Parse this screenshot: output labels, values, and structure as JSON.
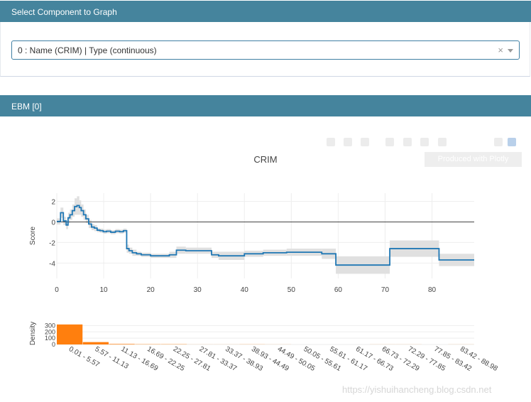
{
  "component_panel": {
    "title": "Select Component to Graph"
  },
  "component_select": {
    "value": "0 : Name (CRIM) | Type (continuous)",
    "clear_symbol": "×"
  },
  "ebm_panel": {
    "title": "EBM [0]"
  },
  "modebar": {
    "produced_label": "Produced with Plotly"
  },
  "colors": {
    "header_bg": "#45849d",
    "score_line": "#1f77b4",
    "density_bar": "#ff7f0e",
    "ci_band": "#e0e0e0"
  },
  "chart_data": [
    {
      "type": "line",
      "title": "CRIM",
      "xlabel": "",
      "ylabel": "Score",
      "x_ticks": [
        0,
        10,
        20,
        30,
        40,
        50,
        60,
        70,
        80
      ],
      "y_ticks": [
        2,
        0,
        -2,
        -4
      ],
      "xlim": [
        0,
        89
      ],
      "ylim": [
        -5.5,
        2.8
      ],
      "grid": true,
      "zero_line": true,
      "step_x": [
        0,
        0.8,
        1.4,
        2.0,
        2.4,
        2.8,
        3.3,
        3.8,
        4.3,
        4.8,
        5.2,
        5.7,
        6.2,
        6.8,
        7.4,
        8.0,
        8.6,
        9.2,
        9.9,
        10.6,
        11.5,
        12.5,
        13.4,
        14.2,
        14.9,
        15.4,
        16.1,
        17.0,
        18.0,
        20.0,
        22.0,
        24.0,
        25.5,
        27.5,
        33.0,
        34.5,
        40.0,
        44.0,
        49.0,
        56.5,
        59.5,
        71.0,
        81.5,
        89.0
      ],
      "step_y": [
        0.05,
        0.9,
        0.1,
        -0.3,
        0.4,
        0.7,
        1.1,
        1.5,
        1.6,
        1.4,
        1.1,
        0.7,
        0.3,
        -0.2,
        -0.5,
        -0.6,
        -0.8,
        -0.85,
        -0.95,
        -0.9,
        -1.0,
        -0.9,
        -0.95,
        -0.85,
        -2.6,
        -2.8,
        -3.0,
        -3.1,
        -3.2,
        -3.3,
        -3.3,
        -3.2,
        -2.75,
        -2.8,
        -3.2,
        -3.3,
        -3.1,
        -3.0,
        -2.95,
        -3.1,
        -4.2,
        -2.6,
        -3.7,
        -3.7
      ],
      "ci_half_width": [
        0.3,
        0.5,
        0.4,
        0.4,
        0.5,
        0.5,
        0.6,
        0.8,
        0.9,
        0.7,
        0.6,
        0.5,
        0.4,
        0.4,
        0.3,
        0.3,
        0.2,
        0.2,
        0.2,
        0.2,
        0.2,
        0.2,
        0.2,
        0.2,
        0.4,
        0.3,
        0.3,
        0.2,
        0.2,
        0.2,
        0.2,
        0.3,
        0.35,
        0.3,
        0.3,
        0.4,
        0.3,
        0.3,
        0.35,
        0.5,
        0.85,
        0.8,
        0.6,
        0.6
      ]
    },
    {
      "type": "bar",
      "title": "",
      "xlabel": "",
      "ylabel": "Density",
      "y_ticks": [
        300,
        200,
        100,
        0
      ],
      "ylim": [
        0,
        350
      ],
      "categories": [
        "0.01 - 5.57",
        "5.57 - 11.13",
        "11.13 - 16.69",
        "16.69 - 22.25",
        "22.25 - 27.81",
        "27.81 - 33.37",
        "33.37 - 38.93",
        "38.93 - 44.49",
        "44.49 - 50.05",
        "50.05 - 55.61",
        "55.61 - 61.17",
        "61.17 - 66.73",
        "66.73 - 72.29",
        "72.29 - 77.85",
        "77.85 - 83.42",
        "83.42 - 88.98"
      ],
      "values": [
        318,
        38,
        8,
        4,
        4,
        1,
        1,
        2,
        1,
        0,
        0,
        0,
        1,
        1,
        0,
        1
      ]
    }
  ]
}
